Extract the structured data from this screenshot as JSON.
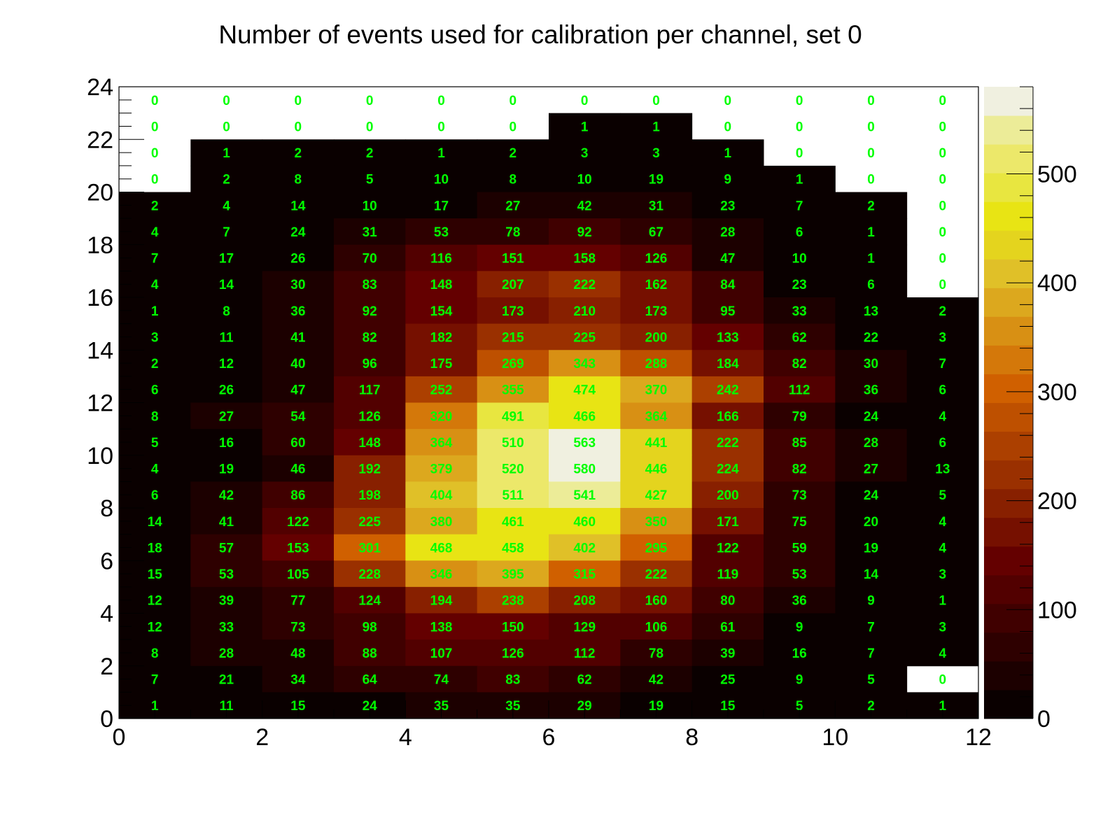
{
  "chart_data": {
    "type": "heatmap",
    "title": "Number of events used for calibration per channel, set 0",
    "xlabel": "",
    "ylabel": "",
    "xlim": [
      0,
      12
    ],
    "ylim": [
      0,
      24
    ],
    "zlim": [
      0,
      580
    ],
    "x_ticks": [
      "0",
      "2",
      "4",
      "6",
      "8",
      "10",
      "12"
    ],
    "y_ticks": [
      "0",
      "2",
      "4",
      "6",
      "8",
      "10",
      "12",
      "14",
      "16",
      "18",
      "20",
      "22",
      "24"
    ],
    "z_ticks": [
      "0",
      "100",
      "200",
      "300",
      "400",
      "500"
    ],
    "z_tick_values": [
      0,
      100,
      200,
      300,
      400,
      500
    ],
    "grid": false,
    "palette": [
      "#0a0000",
      "#1c0000",
      "#2e0000",
      "#400000",
      "#520000",
      "#640000",
      "#761000",
      "#882000",
      "#9a3000",
      "#ac4000",
      "#be5000",
      "#d06000",
      "#d4780a",
      "#d89014",
      "#dca81e",
      "#e0c028",
      "#e4d41e",
      "#e8e414",
      "#e8e640",
      "#ece86a",
      "#ecec98",
      "#f0f0e0"
    ],
    "rows_top_to_bottom": [
      [
        0,
        0,
        0,
        0,
        0,
        0,
        0,
        0,
        0,
        0,
        0,
        0
      ],
      [
        0,
        0,
        0,
        0,
        0,
        0,
        1,
        1,
        0,
        0,
        0,
        0
      ],
      [
        0,
        1,
        2,
        2,
        1,
        2,
        3,
        3,
        1,
        0,
        0,
        0
      ],
      [
        0,
        2,
        8,
        5,
        10,
        8,
        10,
        19,
        9,
        1,
        0,
        0
      ],
      [
        2,
        4,
        14,
        10,
        17,
        27,
        42,
        31,
        23,
        7,
        2,
        0
      ],
      [
        4,
        7,
        24,
        31,
        53,
        78,
        92,
        67,
        28,
        6,
        1,
        0
      ],
      [
        7,
        17,
        26,
        70,
        116,
        151,
        158,
        126,
        47,
        10,
        1,
        0
      ],
      [
        4,
        14,
        30,
        83,
        148,
        207,
        222,
        162,
        84,
        23,
        6,
        0
      ],
      [
        1,
        8,
        36,
        92,
        154,
        173,
        210,
        173,
        95,
        33,
        13,
        2
      ],
      [
        3,
        11,
        41,
        82,
        182,
        215,
        225,
        200,
        133,
        62,
        22,
        3
      ],
      [
        2,
        12,
        40,
        96,
        175,
        269,
        343,
        288,
        184,
        82,
        30,
        7
      ],
      [
        6,
        26,
        47,
        117,
        252,
        355,
        474,
        370,
        242,
        112,
        36,
        6
      ],
      [
        8,
        27,
        54,
        126,
        320,
        491,
        466,
        364,
        166,
        79,
        24,
        4
      ],
      [
        5,
        16,
        60,
        148,
        364,
        510,
        563,
        441,
        222,
        85,
        28,
        6
      ],
      [
        4,
        19,
        46,
        192,
        379,
        520,
        580,
        446,
        224,
        82,
        27,
        13
      ],
      [
        6,
        42,
        86,
        198,
        404,
        511,
        541,
        427,
        200,
        73,
        24,
        5
      ],
      [
        14,
        41,
        122,
        225,
        380,
        461,
        460,
        350,
        171,
        75,
        20,
        4
      ],
      [
        18,
        57,
        153,
        301,
        468,
        458,
        402,
        295,
        122,
        59,
        19,
        4
      ],
      [
        15,
        53,
        105,
        228,
        346,
        395,
        315,
        222,
        119,
        53,
        14,
        3
      ],
      [
        12,
        39,
        77,
        124,
        194,
        238,
        208,
        160,
        80,
        36,
        9,
        1
      ],
      [
        12,
        33,
        73,
        98,
        138,
        150,
        129,
        106,
        61,
        9,
        7,
        3
      ],
      [
        8,
        28,
        48,
        88,
        107,
        126,
        112,
        78,
        39,
        16,
        7,
        4
      ],
      [
        7,
        21,
        34,
        64,
        74,
        83,
        62,
        42,
        25,
        9,
        5,
        0
      ],
      [
        1,
        11,
        15,
        24,
        35,
        35,
        29,
        19,
        15,
        5,
        2,
        1
      ]
    ]
  }
}
